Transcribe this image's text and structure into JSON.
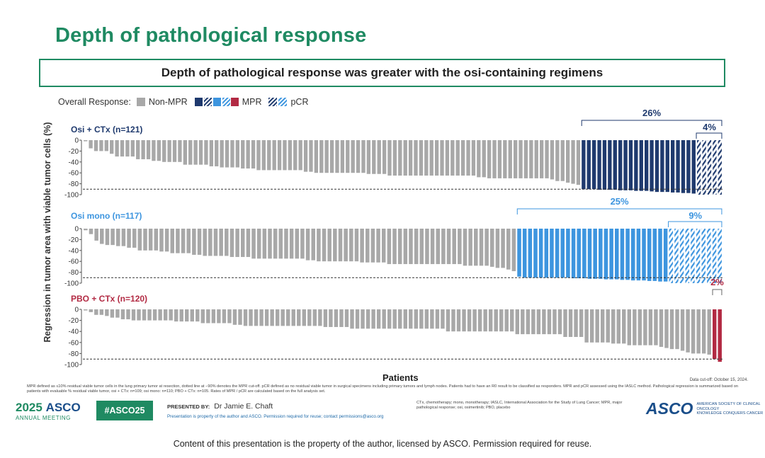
{
  "page": {
    "title": "Depth of pathological response",
    "subtitle": "Depth of pathological response was greater with the osi-containing regimens"
  },
  "legend": {
    "label": "Overall Response:",
    "non_mpr": "Non-MPR",
    "mpr": "MPR",
    "pcr": "pCR",
    "colors": {
      "nonmpr": "#a8a8a8",
      "dark": "#1f3a6e",
      "light": "#3d95df",
      "red": "#b22a43"
    }
  },
  "chart_data": {
    "type": "bar",
    "ylabel": "Regression in tumor area with viable tumor cells (%)",
    "xlabel": "Patients",
    "ylim": [
      -100,
      0
    ],
    "yticks": [
      "0",
      "-20",
      "-40",
      "-60",
      "-80",
      "-100"
    ],
    "mpr_cutoff": -90,
    "panels": [
      {
        "name": "Osi + CTx (n=121)",
        "color": "#1f3a6e",
        "mpr_pct": "26%",
        "pcr_pct": "4%",
        "nonmpr_values": [
          -2,
          -15,
          -20,
          -20,
          -20,
          -25,
          -30,
          -30,
          -30,
          -30,
          -35,
          -35,
          -35,
          -38,
          -38,
          -40,
          -40,
          -40,
          -40,
          -45,
          -45,
          -45,
          -45,
          -45,
          -48,
          -48,
          -50,
          -50,
          -50,
          -50,
          -52,
          -52,
          -52,
          -55,
          -55,
          -55,
          -55,
          -55,
          -55,
          -55,
          -55,
          -55,
          -58,
          -58,
          -60,
          -60,
          -60,
          -60,
          -60,
          -60,
          -60,
          -60,
          -60,
          -60,
          -62,
          -62,
          -62,
          -62,
          -65,
          -65,
          -65,
          -65,
          -65,
          -65,
          -65,
          -65,
          -65,
          -65,
          -65,
          -65,
          -65,
          -65,
          -65,
          -65,
          -65,
          -68,
          -68,
          -70,
          -70,
          -70,
          -70,
          -70,
          -70,
          -70,
          -70,
          -70,
          -70,
          -70,
          -70,
          -72,
          -75,
          -75,
          -78,
          -80,
          -82
        ],
        "mpr_values": [
          -90,
          -90,
          -90,
          -91,
          -91,
          -91,
          -91,
          -92,
          -92,
          -92,
          -93,
          -93,
          -93,
          -94,
          -95,
          -95,
          -95,
          -96,
          -96,
          -97,
          -97,
          -98
        ],
        "pcr_values": [
          -100,
          -100,
          -100,
          -100,
          -100
        ]
      },
      {
        "name": "Osi mono (n=117)",
        "color": "#3d95df",
        "mpr_pct": "25%",
        "pcr_pct": "9%",
        "nonmpr_values": [
          -3,
          -10,
          -22,
          -28,
          -30,
          -30,
          -32,
          -32,
          -35,
          -35,
          -40,
          -40,
          -40,
          -40,
          -42,
          -42,
          -45,
          -45,
          -45,
          -45,
          -48,
          -48,
          -50,
          -50,
          -50,
          -50,
          -50,
          -52,
          -52,
          -52,
          -52,
          -55,
          -55,
          -55,
          -55,
          -55,
          -55,
          -55,
          -55,
          -55,
          -55,
          -58,
          -58,
          -60,
          -60,
          -60,
          -60,
          -60,
          -60,
          -60,
          -60,
          -62,
          -62,
          -62,
          -62,
          -62,
          -65,
          -65,
          -65,
          -65,
          -65,
          -65,
          -65,
          -65,
          -65,
          -65,
          -65,
          -65,
          -65,
          -65,
          -68,
          -68,
          -68,
          -68,
          -68,
          -70,
          -72,
          -72,
          -75,
          -78
        ],
        "mpr_values": [
          -88,
          -90,
          -90,
          -90,
          -90,
          -90,
          -90,
          -90,
          -90,
          -90,
          -91,
          -91,
          -91,
          -92,
          -92,
          -92,
          -93,
          -93,
          -93,
          -94,
          -94,
          -95,
          -95,
          -95,
          -96,
          -96,
          -97,
          -97
        ],
        "pcr_values": [
          -100,
          -100,
          -100,
          -100,
          -100,
          -100,
          -100,
          -100,
          -100,
          -100
        ]
      },
      {
        "name": "PBO + CTx (n=120)",
        "color": "#b22a43",
        "mpr_pct": "2%",
        "pcr_pct": "",
        "nonmpr_values": [
          -2,
          -5,
          -10,
          -10,
          -12,
          -15,
          -15,
          -18,
          -18,
          -20,
          -20,
          -20,
          -20,
          -20,
          -20,
          -20,
          -20,
          -22,
          -22,
          -22,
          -22,
          -22,
          -25,
          -25,
          -25,
          -25,
          -25,
          -25,
          -28,
          -28,
          -30,
          -30,
          -30,
          -30,
          -30,
          -30,
          -30,
          -30,
          -30,
          -30,
          -30,
          -30,
          -30,
          -30,
          -30,
          -32,
          -32,
          -32,
          -32,
          -32,
          -35,
          -35,
          -35,
          -35,
          -35,
          -35,
          -35,
          -35,
          -35,
          -35,
          -35,
          -35,
          -35,
          -35,
          -35,
          -35,
          -35,
          -35,
          -40,
          -40,
          -40,
          -40,
          -40,
          -40,
          -40,
          -40,
          -40,
          -40,
          -40,
          -40,
          -40,
          -45,
          -45,
          -45,
          -45,
          -45,
          -45,
          -45,
          -45,
          -45,
          -50,
          -50,
          -50,
          -50,
          -60,
          -60,
          -60,
          -60,
          -60,
          -62,
          -62,
          -62,
          -65,
          -65,
          -65,
          -65,
          -65,
          -65,
          -68,
          -70,
          -72,
          -72,
          -75,
          -78,
          -80,
          -80,
          -80,
          -82
        ],
        "mpr_values": [
          -90,
          -95
        ],
        "pcr_values": []
      }
    ]
  },
  "footer": {
    "cutoff": "Data cut-off: October 15, 2024.",
    "footnote": "MPR defined as ≤10% residual viable tumor cells in the lung primary tumor at resection, dotted line at −90% denotes the MPR cut-off. pCR defined as no residual viable tumor in surgical specimens including primary tumors and lymph nodes. Patients had to have an R0 result to be classified as responders. MPR and pCR assessed using the IASLC method. Pathological regression is summarized based on patients with evaluable % residual viable tumor, osi + CTx: n=109; osi mono: n=110; PBO + CTx: n=105. Rates of MPR / pCR are calculated based on the full analysis set.",
    "asco_year": "2025",
    "asco_name": "ASCO",
    "annual_meeting": "ANNUAL MEETING",
    "hashtag": "#ASCO25",
    "presented_by_label": "PRESENTED BY:",
    "presenter": "Dr Jamie E. Chaft",
    "presenter_note": "Presentation is property of the author and ASCO. Permission required for reuse; contact permissions@asco.org",
    "abbreviations": "CTx, chemotherapy; mono, monotherapy; IASLC, International Association for the Study of Lung Cancer; MPR, major pathological response; osi, osimertinib; PBO, placebo",
    "asco_logo": "ASCO",
    "society": "AMERICAN SOCIETY OF CLINICAL ONCOLOGY",
    "society_tag": "KNOWLEDGE CONQUERS CANCER",
    "copyright": "Content of this presentation is the property of the author, licensed by ASCO. Permission required for reuse."
  }
}
